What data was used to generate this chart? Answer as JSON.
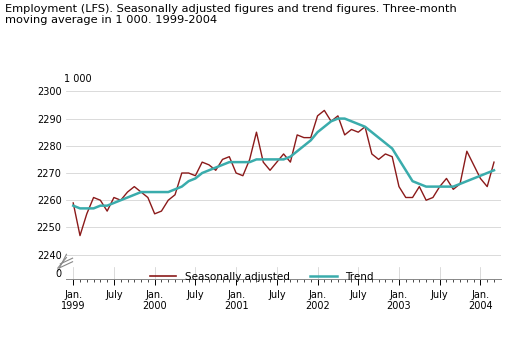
{
  "title": "Employment (LFS). Seasonally adjusted figures and trend figures. Three-month\nmoving average in 1 000. 1999-2004",
  "ylabel_top": "1 000",
  "sa_color": "#8B1A1A",
  "trend_color": "#3AACAC",
  "background_color": "#ffffff",
  "grid_color": "#cccccc",
  "seasonally_adjusted": [
    2259,
    2247,
    2255,
    2261,
    2260,
    2256,
    2261,
    2260,
    2263,
    2265,
    2263,
    2261,
    2255,
    2256,
    2260,
    2262,
    2270,
    2270,
    2269,
    2274,
    2273,
    2271,
    2275,
    2276,
    2270,
    2269,
    2275,
    2285,
    2274,
    2271,
    2274,
    2277,
    2274,
    2284,
    2283,
    2283,
    2291,
    2293,
    2289,
    2291,
    2284,
    2286,
    2285,
    2287,
    2277,
    2275,
    2277,
    2276,
    2265,
    2261,
    2261,
    2265,
    2260,
    2261,
    2265,
    2268,
    2264,
    2266,
    2278,
    2273,
    2268,
    2265,
    2274
  ],
  "trend": [
    2258,
    2257,
    2257,
    2257,
    2258,
    2258,
    2259,
    2260,
    2261,
    2262,
    2263,
    2263,
    2263,
    2263,
    2263,
    2264,
    2265,
    2267,
    2268,
    2270,
    2271,
    2272,
    2273,
    2274,
    2274,
    2274,
    2274,
    2275,
    2275,
    2275,
    2275,
    2275,
    2276,
    2278,
    2280,
    2282,
    2285,
    2287,
    2289,
    2290,
    2290,
    2289,
    2288,
    2287,
    2285,
    2283,
    2281,
    2279,
    2275,
    2271,
    2267,
    2266,
    2265,
    2265,
    2265,
    2265,
    2265,
    2266,
    2267,
    2268,
    2269,
    2270,
    2271
  ],
  "n_points": 63,
  "xtick_positions": [
    0,
    6,
    12,
    18,
    24,
    30,
    36,
    42,
    48,
    54,
    60
  ],
  "xtick_labels": [
    "Jan.\n1999",
    "July",
    "Jan.\n2000",
    "July",
    "Jan.\n2001",
    "July",
    "Jan.\n2002",
    "July",
    "Jan.\n2003",
    "July",
    "Jan.\n2004"
  ],
  "ylim_main": [
    2237,
    2302
  ],
  "yticks_main": [
    2240,
    2250,
    2260,
    2270,
    2280,
    2290,
    2300
  ],
  "ylim_zero": [
    -0.5,
    0.5
  ],
  "yticks_zero": [
    0
  ]
}
